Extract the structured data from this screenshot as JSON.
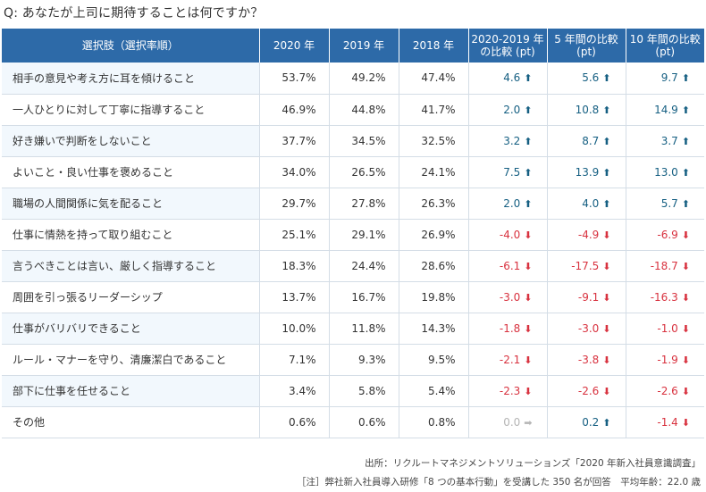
{
  "question": "Q: あなたが上司に期待することは何ですか？",
  "headers": [
    "選択肢（選択率順）",
    "2020 年",
    "2019 年",
    "2018 年",
    "2020-2019 年\nの比較 (pt)",
    "5 年間の比較\n(pt)",
    "10 年間の比較\n(pt)"
  ],
  "rows": [
    {
      "option": "相手の意見や考え方に耳を傾けること",
      "y2020": "53.7%",
      "y2019": "49.2%",
      "y2018": "47.4%",
      "d1": "4.6",
      "d1_dir": "up",
      "d5": "5.6",
      "d5_dir": "up",
      "d10": "9.7",
      "d10_dir": "up"
    },
    {
      "option": "一人ひとりに対して丁寧に指導すること",
      "y2020": "46.9%",
      "y2019": "44.8%",
      "y2018": "41.7%",
      "d1": "2.0",
      "d1_dir": "up",
      "d5": "10.8",
      "d5_dir": "up",
      "d10": "14.9",
      "d10_dir": "up"
    },
    {
      "option": "好き嫌いで判断をしないこと",
      "y2020": "37.7%",
      "y2019": "34.5%",
      "y2018": "32.5%",
      "d1": "3.2",
      "d1_dir": "up",
      "d5": "8.7",
      "d5_dir": "up",
      "d10": "3.7",
      "d10_dir": "up"
    },
    {
      "option": "よいこと・良い仕事を褒めること",
      "y2020": "34.0%",
      "y2019": "26.5%",
      "y2018": "24.1%",
      "d1": "7.5",
      "d1_dir": "up",
      "d5": "13.9",
      "d5_dir": "up",
      "d10": "13.0",
      "d10_dir": "up"
    },
    {
      "option": "職場の人間関係に気を配ること",
      "y2020": "29.7%",
      "y2019": "27.8%",
      "y2018": "26.3%",
      "d1": "2.0",
      "d1_dir": "up",
      "d5": "4.0",
      "d5_dir": "up",
      "d10": "5.7",
      "d10_dir": "up"
    },
    {
      "option": "仕事に情熱を持って取り組むこと",
      "y2020": "25.1%",
      "y2019": "29.1%",
      "y2018": "26.9%",
      "d1": "-4.0",
      "d1_dir": "down",
      "d5": "-4.9",
      "d5_dir": "down",
      "d10": "-6.9",
      "d10_dir": "down"
    },
    {
      "option": "言うべきことは言い、厳しく指導すること",
      "y2020": "18.3%",
      "y2019": "24.4%",
      "y2018": "28.6%",
      "d1": "-6.1",
      "d1_dir": "down",
      "d5": "-17.5",
      "d5_dir": "down",
      "d10": "-18.7",
      "d10_dir": "down"
    },
    {
      "option": "周囲を引っ張るリーダーシップ",
      "y2020": "13.7%",
      "y2019": "16.7%",
      "y2018": "19.8%",
      "d1": "-3.0",
      "d1_dir": "down",
      "d5": "-9.1",
      "d5_dir": "down",
      "d10": "-16.3",
      "d10_dir": "down"
    },
    {
      "option": "仕事がバリバリできること",
      "y2020": "10.0%",
      "y2019": "11.8%",
      "y2018": "14.3%",
      "d1": "-1.8",
      "d1_dir": "down",
      "d5": "-3.0",
      "d5_dir": "down",
      "d10": "-1.0",
      "d10_dir": "down"
    },
    {
      "option": "ルール・マナーを守り、清廉潔白であること",
      "y2020": "7.1%",
      "y2019": "9.3%",
      "y2018": "9.5%",
      "d1": "-2.1",
      "d1_dir": "down",
      "d5": "-3.8",
      "d5_dir": "down",
      "d10": "-1.9",
      "d10_dir": "down"
    },
    {
      "option": "部下に仕事を任せること",
      "y2020": "3.4%",
      "y2019": "5.8%",
      "y2018": "5.4%",
      "d1": "-2.3",
      "d1_dir": "down",
      "d5": "-2.6",
      "d5_dir": "down",
      "d10": "-2.6",
      "d10_dir": "down"
    },
    {
      "option": "その他",
      "y2020": "0.6%",
      "y2019": "0.6%",
      "y2018": "0.8%",
      "d1": "0.0",
      "d1_dir": "flat",
      "d5": "0.2",
      "d5_dir": "up",
      "d10": "-1.4",
      "d10_dir": "down"
    }
  ],
  "colors": {
    "header_bg": "#2d6aa8",
    "up": "#155f82",
    "down": "#d8323f",
    "flat": "#b5b5b5",
    "stripe": "#f2f8fd"
  },
  "footer": {
    "source": "出所：リクルートマネジメントソリューションズ「2020 年新入社員意識調査」",
    "note": "［注］弊社新入社員導入研修「8 つの基本行動」を受講した 350 名が回答　平均年齢：22.0 歳"
  }
}
